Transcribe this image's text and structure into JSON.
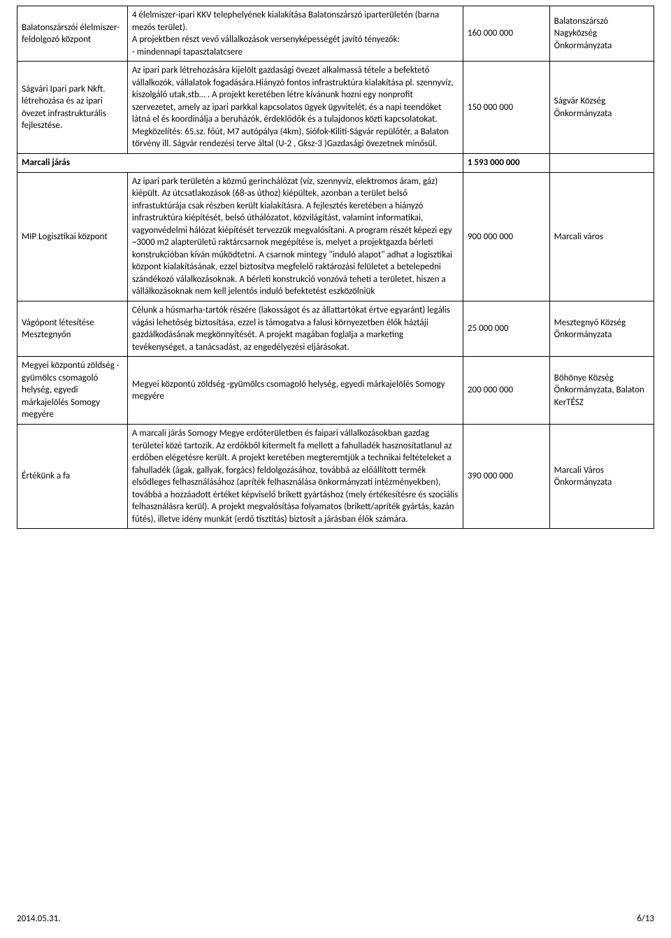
{
  "rows": [
    {
      "col1": "Balatonszárszói élelmiszer-feldolgozó központ",
      "col2": "4 élelmiszer-ipari KKV telephelyének kialakítása Balatonszárszó iparterületén (barna mezős terület).\nA projektben részt vevő vállalkozások versenyképességét javító tényezők:\n- mindennapi tapasztalatcsere",
      "col3": "160 000 000",
      "col4": "Balatonszárszó Nagyközség Önkormányzata"
    },
    {
      "col1": "Ságvári Ipari park Nkft. létrehozása és az ipari övezet infrastrukturális fejlesztése.",
      "col2": "Az ipari park létrehozására kijelölt gazdasági övezet alkalmassá tétele a befektető vállalkozók, vállalatok fogadására.Hiányzó fontos infrastruktúra kialakítása pl. szennyvíz, kiszolgáló utak,stb… . A projekt keretében létre kívánunk hozni egy nonprofit szervezetet, amely az ipari parkkal kapcsolatos ügyek ügyvitelét, és a napi teendőket látná el és koordinálja a beruházók, érdeklődők és a tulajdonos közti kapcsolatokat. Megközelítés: 65.sz. főút, M7 autópálya (4km), Siófok-Kiliti-Ságvár repülőtér, a Balaton törvény ill. Ságvár rendezési terve által (U-2 , Gksz-3 )Gazdasági övezetnek minősül.",
      "col3": "150 000 000",
      "col4": "Ságvár Község Önkormányzata"
    }
  ],
  "section": {
    "label": "Marcali járás",
    "total": "1 593 000 000"
  },
  "rows2": [
    {
      "col1": "MIP Logisztikai központ",
      "col2": "Az ipari park területén a közmű gerinchálózat (víz, szennyvíz, elektromos áram, gáz) kiépült. Az útcsatlakozások (68-as úthoz) kiépültek, azonban a terület belső infrastuktúrája csak részben került kialakításra. A fejlesztés keretében a hiányzó infrastruktúra kiépítését, belső úthálózatot, közvilágítást, valamint informatikai, vagyonvédelmi hálózat kiépítését tervezzük megvalósítani. A program részét képezi egy ~3000 m2 alapterületű raktárcsarnok megépítése is, melyet a projektgazda bérleti konstrukcióban kíván működtetni. A csarnok mintegy \"induló alapot\" adhat a logisztikai központ kialakításának, ezzel biztosítva megfelelő raktározási felületet a betelepedni szándékozó válalkozásoknak. A bérleti konstrukció vonzóvá teheti a területet, hiszen a vállálkozásoknak nem kell jelentős induló befektetést eszközölniük",
      "col3": "900 000 000",
      "col4": "Marcali város"
    },
    {
      "col1": "Vágópont létesítése Mesztegnyőn",
      "col2": "Célunk a húsmarha-tartók részére (lakosságot és az állattartókat értve egyaránt) legális vágási lehetőség biztosítása, ezzel is támogatva a falusi környezetben élők háztáji gazdálkodásának megkönnyítését. A projekt magában foglalja a marketing tevékenységet, a tanácsadást, az engedélyezési eljárásokat.",
      "col3": "25 000 000",
      "col4": "Mesztegnyő Község Önkormányzata"
    },
    {
      "col1": "Megyei központú zöldség -gyümölcs csomagoló helység, egyedi márkajelölés Somogy megyére",
      "col2": "Megyei központú zöldség -gyümölcs csomagoló helység, egyedi márkajelölés Somogy megyére",
      "col3": "200 000 000",
      "col4": "Böhönye Község Önkormányzata, Balaton KerTÉSZ"
    },
    {
      "col1": "Értékünk a fa",
      "col2": "A marcali járás Somogy Megye erdőterületben és faipari vállalkozásokban gazdag területei közé tartozik. Az erdőkből kitermelt fa mellett a fahulladék hasznosítatlanul az erdőben elégetésre került. A projekt keretében megteremtjük a technikai feltételeket a fahulladék (ágak, gallyak, forgács) feldolgozásához, továbbá az előállított termék elsődleges felhasználásához (apríték felhasználása önkormányzati intézményekben), továbbá a hozzáadott értéket képviselő brikett gyártáshoz (mely értékesítésre és szociális felhasználásra kerül). A projekt megvalósítása folyamatos (brikett/apríték gyártás, kazán fűtés), illetve idény munkát (erdő tisztítás) biztosít a járásban élők számára.",
      "col3": "390 000 000",
      "col4": "Marcali Város Önkormányzata"
    }
  ],
  "footer": {
    "date": "2014.05.31.",
    "page": "6/13"
  }
}
